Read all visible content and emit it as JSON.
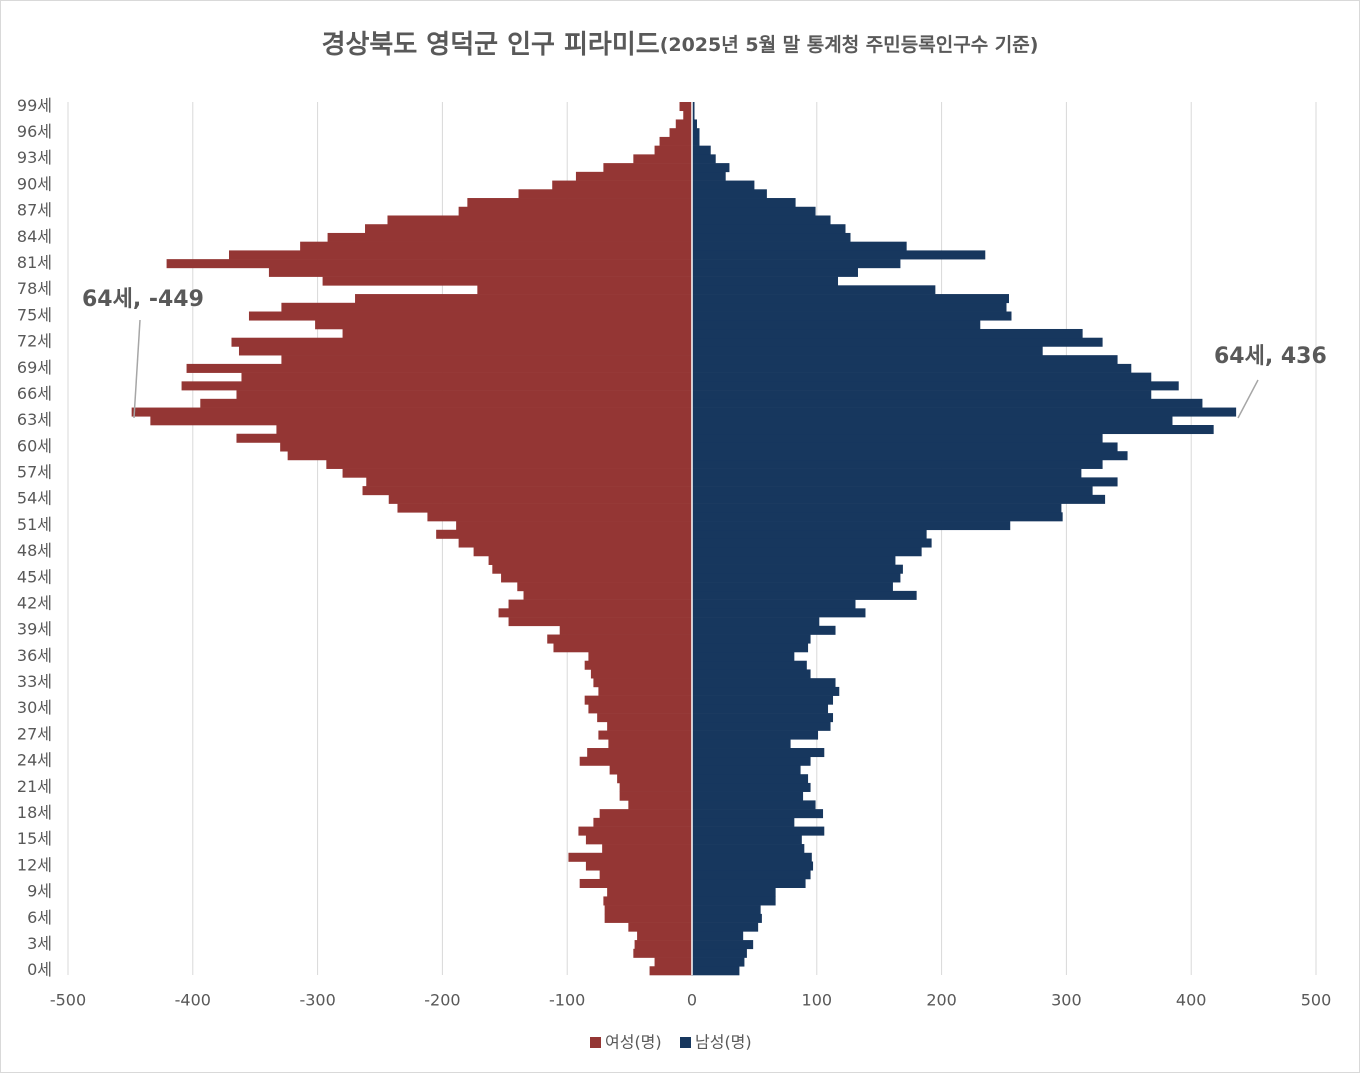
{
  "chart_data": {
    "type": "pyramid",
    "title": "경상북도 영덕군 인구 피라미드",
    "subtitle": "(2025년 5월 말 통계청 주민등록인구수 기준)",
    "categories": [
      "0세",
      null,
      null,
      "3세",
      null,
      null,
      "6세",
      null,
      null,
      "9세",
      null,
      null,
      "12세",
      null,
      null,
      "15세",
      null,
      null,
      "18세",
      null,
      null,
      "21세",
      null,
      null,
      "24세",
      null,
      null,
      "27세",
      null,
      null,
      "30세",
      null,
      null,
      "33세",
      null,
      null,
      "36세",
      null,
      null,
      "39세",
      null,
      null,
      "42세",
      null,
      null,
      "45세",
      null,
      null,
      "48세",
      null,
      null,
      "51세",
      null,
      null,
      "54세",
      null,
      null,
      "57세",
      null,
      null,
      "60세",
      null,
      null,
      "63세",
      null,
      null,
      "66세",
      null,
      null,
      "69세",
      null,
      null,
      "72세",
      null,
      null,
      "75세",
      null,
      null,
      "78세",
      null,
      null,
      "81세",
      null,
      null,
      "84세",
      null,
      null,
      "87세",
      null,
      null,
      "90세",
      null,
      null,
      "93세",
      null,
      null,
      "96세",
      null,
      null,
      "99세"
    ],
    "series": [
      {
        "name": "여성(명)",
        "color": "#943634",
        "values": [
          -34,
          -30,
          -47,
          -46,
          -44,
          -51,
          -70,
          -70,
          -71,
          -68,
          -90,
          -74,
          -85,
          -99,
          -72,
          -85,
          -91,
          -79,
          -74,
          -51,
          -58,
          -58,
          -60,
          -66,
          -90,
          -84,
          -67,
          -75,
          -68,
          -76,
          -83,
          -86,
          -75,
          -79,
          -81,
          -86,
          -83,
          -111,
          -116,
          -106,
          -147,
          -155,
          -147,
          -135,
          -140,
          -153,
          -160,
          -163,
          -175,
          -187,
          -205,
          -189,
          -212,
          -236,
          -243,
          -264,
          -261,
          -280,
          -293,
          -324,
          -330,
          -365,
          -333,
          -434,
          -449,
          -394,
          -365,
          -409,
          -361,
          -405,
          -329,
          -363,
          -369,
          -280,
          -302,
          -355,
          -329,
          -270,
          -172,
          -296,
          -339,
          -421,
          -371,
          -314,
          -292,
          -262,
          -244,
          -187,
          -180,
          -139,
          -112,
          -93,
          -71,
          -47,
          -30,
          -26,
          -18,
          -13,
          -7,
          -10
        ]
      },
      {
        "name": "남성(명)",
        "color": "#17375e",
        "values": [
          38,
          42,
          44,
          49,
          41,
          53,
          56,
          55,
          67,
          67,
          91,
          95,
          97,
          96,
          90,
          88,
          106,
          82,
          105,
          99,
          89,
          95,
          93,
          87,
          95,
          106,
          79,
          101,
          111,
          113,
          109,
          113,
          118,
          115,
          95,
          92,
          82,
          93,
          95,
          115,
          102,
          139,
          131,
          180,
          161,
          167,
          169,
          163,
          184,
          192,
          188,
          255,
          297,
          296,
          331,
          321,
          341,
          312,
          329,
          349,
          341,
          329,
          418,
          385,
          436,
          409,
          368,
          390,
          368,
          352,
          341,
          281,
          329,
          313,
          231,
          256,
          252,
          254,
          195,
          117,
          133,
          167,
          235,
          172,
          127,
          123,
          111,
          99,
          83,
          60,
          50,
          27,
          30,
          19,
          15,
          6,
          6,
          4,
          2,
          2
        ]
      }
    ],
    "annotations": [
      "64세, -449",
      "64세, 436"
    ],
    "xlim": [
      -500,
      500
    ],
    "xticks": [
      -500,
      -400,
      -300,
      -200,
      -100,
      0,
      100,
      200,
      300,
      400,
      500
    ],
    "grid": true,
    "legend": "bottom"
  }
}
